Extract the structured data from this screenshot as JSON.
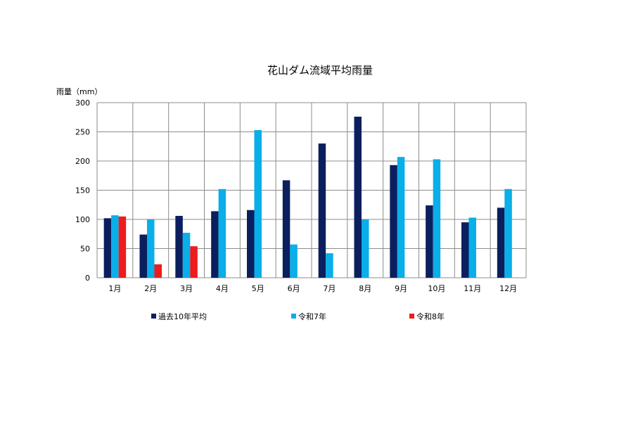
{
  "chart_data": {
    "type": "bar",
    "title": "花山ダム流域平均雨量",
    "ylabel": "雨量（mm）",
    "xlabel": "",
    "ylim": [
      0,
      300
    ],
    "yticks": [
      0,
      50,
      100,
      150,
      200,
      250,
      300
    ],
    "grid": true,
    "legend_position": "bottom",
    "categories": [
      "1月",
      "2月",
      "3月",
      "4月",
      "5月",
      "6月",
      "7月",
      "8月",
      "9月",
      "10月",
      "11月",
      "12月"
    ],
    "series": [
      {
        "name": "過去10年平均",
        "color": "#0b1f5e",
        "values": [
          102,
          74,
          106,
          114,
          116,
          167,
          230,
          276,
          193,
          124,
          95,
          120
        ]
      },
      {
        "name": "令和7年",
        "color": "#0aaee8",
        "values": [
          107,
          100,
          77,
          152,
          253,
          57,
          42,
          100,
          207,
          203,
          103,
          152
        ]
      },
      {
        "name": "令和8年",
        "color": "#ee1c1c",
        "values": [
          105,
          23,
          54,
          null,
          null,
          null,
          null,
          null,
          null,
          null,
          null,
          null
        ]
      }
    ]
  }
}
